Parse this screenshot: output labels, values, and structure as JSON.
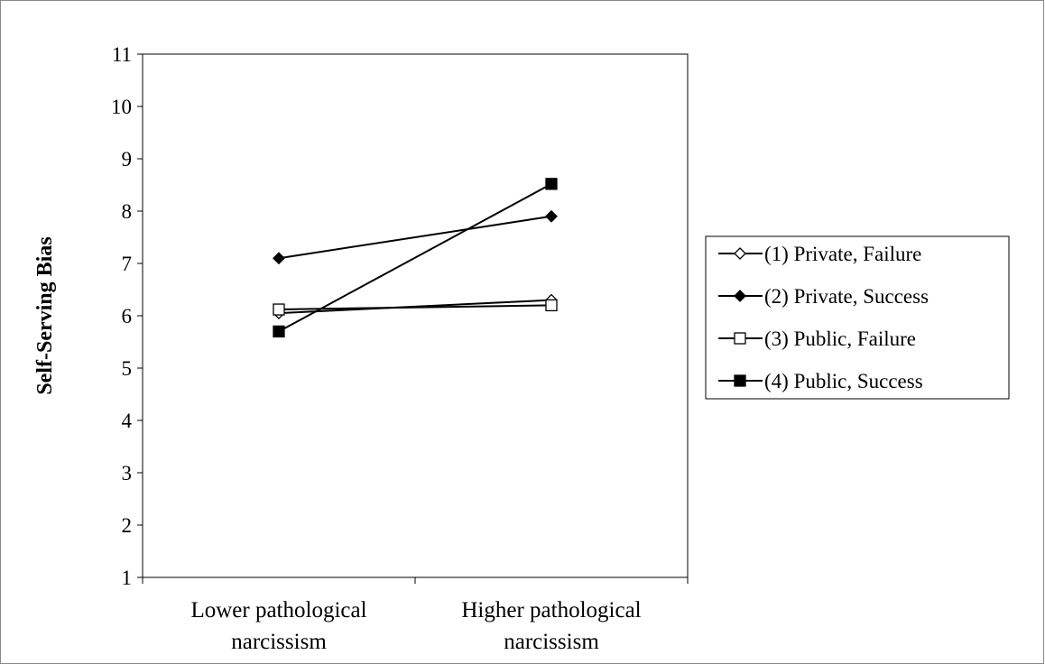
{
  "chart_data": {
    "type": "line",
    "title": "",
    "xlabel": "",
    "ylabel": "Self-Serving Bias",
    "ylim": [
      1,
      11
    ],
    "yticks": [
      1,
      2,
      3,
      4,
      5,
      6,
      7,
      8,
      9,
      10,
      11
    ],
    "ytick_labels": [
      "1",
      "2",
      "3",
      "4",
      "5",
      "6",
      "7",
      "8",
      "9",
      "10",
      "11"
    ],
    "categories": [
      {
        "line1": "Lower pathological",
        "line2": "narcissism"
      },
      {
        "line1": "Higher pathological",
        "line2": "narcissism"
      }
    ],
    "series": [
      {
        "name": "(1) Private, Failure",
        "values": [
          6.05,
          6.3
        ],
        "marker": "diamond-open"
      },
      {
        "name": "(2) Private, Success",
        "values": [
          7.1,
          7.9
        ],
        "marker": "diamond-filled"
      },
      {
        "name": "(3) Public, Failure",
        "values": [
          6.12,
          6.2
        ],
        "marker": "square-open"
      },
      {
        "name": "(4) Public, Success",
        "values": [
          5.7,
          8.52
        ],
        "marker": "square-filled"
      }
    ],
    "grid": false,
    "legend_position": "right"
  }
}
